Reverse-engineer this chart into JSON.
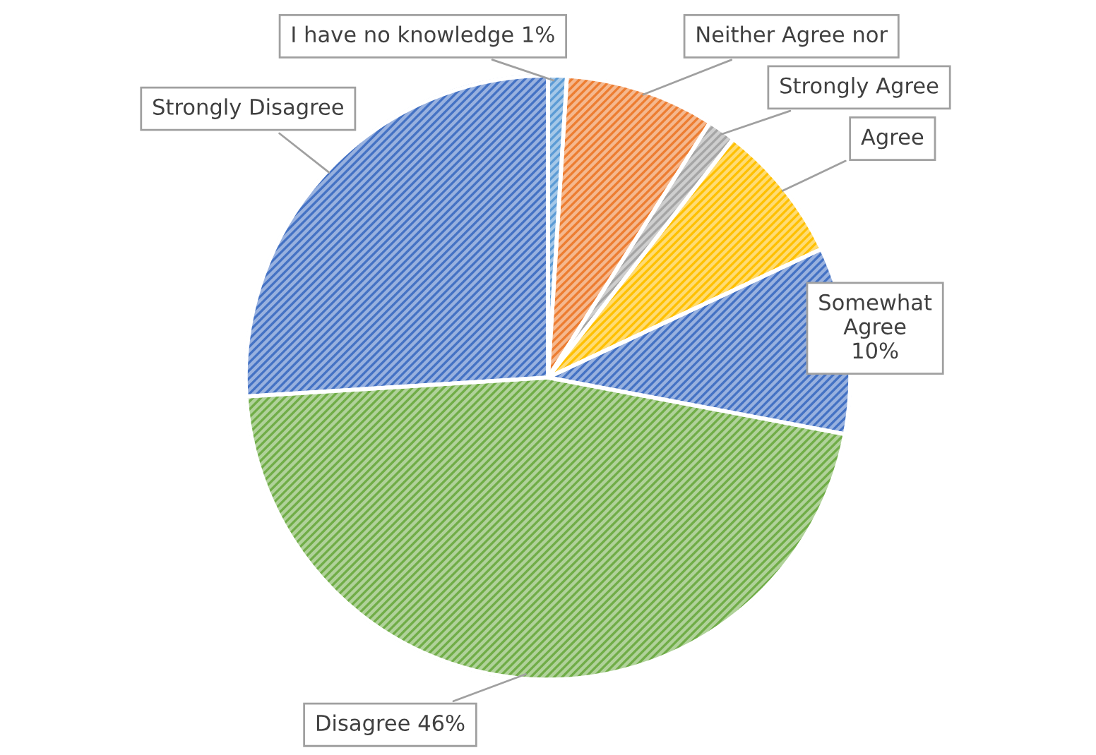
{
  "chart_data": {
    "type": "pie",
    "categories": [
      "I have no knowledge",
      "Neither Agree nor",
      "Strongly Agree",
      "Agree",
      "Somewhat Agree",
      "Disagree",
      "Strongly Disagree"
    ],
    "values": [
      1,
      8,
      1.5,
      7.5,
      10,
      46,
      26
    ],
    "value_labels": [
      "1%",
      null,
      null,
      null,
      "10%",
      "46%",
      null
    ],
    "colors": [
      "#5b9bd5",
      "#ed7d31",
      "#a5a5a5",
      "#ffc000",
      "#4472c4",
      "#70ad47",
      "#4472c4"
    ]
  }
}
